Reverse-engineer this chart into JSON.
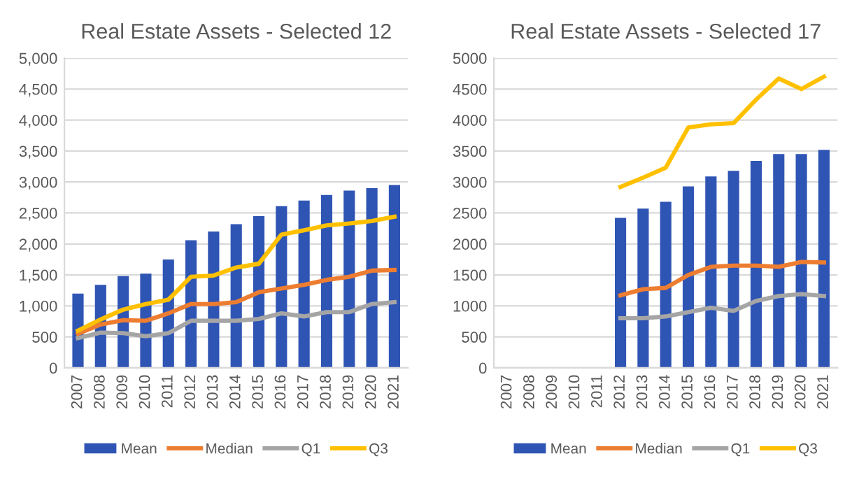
{
  "chart_data": [
    {
      "type": "bar",
      "title": "Real Estate Assets - Selected 12",
      "categories": [
        "2007",
        "2008",
        "2009",
        "2010",
        "2011",
        "2012",
        "2013",
        "2014",
        "2015",
        "2016",
        "2017",
        "2018",
        "2019",
        "2020",
        "2021"
      ],
      "series": [
        {
          "name": "Mean",
          "color": "#2f55b4",
          "values": [
            1200,
            1340,
            1480,
            1520,
            1750,
            2060,
            2200,
            2320,
            2450,
            2610,
            2700,
            2790,
            2860,
            2900,
            2950
          ]
        },
        {
          "name": "Median",
          "type": "line",
          "color": "#ed7d31",
          "values": [
            550,
            700,
            770,
            760,
            880,
            1030,
            1030,
            1060,
            1220,
            1280,
            1340,
            1420,
            1470,
            1570,
            1580
          ]
        },
        {
          "name": "Q1",
          "type": "line",
          "color": "#a5a5a5",
          "values": [
            480,
            570,
            560,
            510,
            560,
            760,
            760,
            760,
            790,
            880,
            830,
            900,
            900,
            1030,
            1060
          ]
        },
        {
          "name": "Q3",
          "type": "line",
          "color": "#ffc000",
          "values": [
            600,
            780,
            940,
            1030,
            1100,
            1470,
            1490,
            1620,
            1680,
            2150,
            2220,
            2300,
            2330,
            2370,
            2440
          ]
        }
      ],
      "ylim": [
        0,
        5000
      ],
      "yticks": [
        {
          "value": 0,
          "label": "0"
        },
        {
          "value": 500,
          "label": "500"
        },
        {
          "value": 1000,
          "label": "1,000"
        },
        {
          "value": 1500,
          "label": "1,500"
        },
        {
          "value": 2000,
          "label": "2,000"
        },
        {
          "value": 2500,
          "label": "2,500"
        },
        {
          "value": 3000,
          "label": "3,000"
        },
        {
          "value": 3500,
          "label": "3,500"
        },
        {
          "value": 4000,
          "label": "4,000"
        },
        {
          "value": 4500,
          "label": "4,500"
        },
        {
          "value": 5000,
          "label": "5,000"
        }
      ],
      "grid": "y",
      "legend": "bottom"
    },
    {
      "type": "bar",
      "title": "Real Estate Assets - Selected 17",
      "categories": [
        "2007",
        "2008",
        "2009",
        "2010",
        "2011",
        "2012",
        "2013",
        "2014",
        "2015",
        "2016",
        "2017",
        "2018",
        "2019",
        "2020",
        "2021"
      ],
      "series": [
        {
          "name": "Mean",
          "color": "#2f55b4",
          "values": [
            null,
            null,
            null,
            null,
            null,
            2420,
            2570,
            2680,
            2930,
            3090,
            3180,
            3340,
            3450,
            3450,
            3520
          ]
        },
        {
          "name": "Median",
          "type": "line",
          "color": "#ed7d31",
          "values": [
            null,
            null,
            null,
            null,
            null,
            1170,
            1270,
            1290,
            1500,
            1630,
            1650,
            1650,
            1630,
            1710,
            1700
          ]
        },
        {
          "name": "Q1",
          "type": "line",
          "color": "#a5a5a5",
          "values": [
            null,
            null,
            null,
            null,
            null,
            800,
            800,
            830,
            900,
            970,
            920,
            1080,
            1160,
            1190,
            1160
          ]
        },
        {
          "name": "Q3",
          "type": "line",
          "color": "#ffc000",
          "values": [
            null,
            null,
            null,
            null,
            null,
            2920,
            3070,
            3230,
            3880,
            3930,
            3950,
            4330,
            4670,
            4500,
            4700
          ]
        }
      ],
      "ylim": [
        0,
        5000
      ],
      "yticks": [
        0,
        500,
        1000,
        1500,
        2000,
        2500,
        3000,
        3500,
        4000,
        4500,
        5000
      ],
      "grid": "y",
      "legend": "bottom"
    }
  ]
}
